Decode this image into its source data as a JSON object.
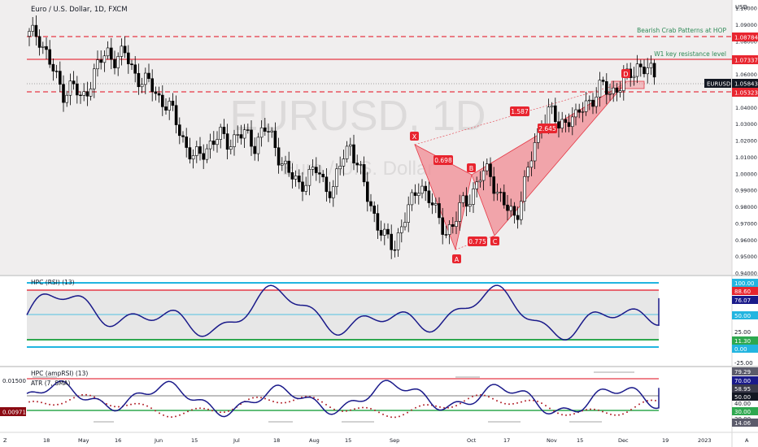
{
  "header": {
    "symbol_title": "Euro / U.S. Dollar, 1D, FXCM"
  },
  "watermark": {
    "main": "EURUSD, 1D",
    "sub": "Euro / U.S. Dollar"
  },
  "price_axis": {
    "currency": "USD",
    "ticks": [
      "1.10000",
      "1.09000",
      "1.08000",
      "1.07000",
      "1.06000",
      "1.05000",
      "1.04000",
      "1.03000",
      "1.02000",
      "1.01000",
      "1.00000",
      "0.99000",
      "0.98000",
      "0.97000",
      "0.96000",
      "0.95000",
      "0.94000"
    ]
  },
  "levels": {
    "hop_label": "Bearish Crab Patterns at HOP",
    "hop_value": "1.08784",
    "resistance_label": "W1 key resistance level",
    "resistance_value": "1.07337",
    "support_value": "1.05323",
    "last_symbol": "EURUSD",
    "last_value": "1.05843"
  },
  "pattern": {
    "points": {
      "X": "X",
      "A": "A",
      "B": "B",
      "C": "C",
      "D": "D"
    },
    "ratios": {
      "xab": "0.698",
      "abc": "0.775",
      "bcd": "2.645",
      "xad": "1.587"
    }
  },
  "time_axis": {
    "labels": [
      "Z",
      "18",
      "May",
      "16",
      "Jun",
      "15",
      "Jul",
      "18",
      "Aug",
      "15",
      "Sep",
      "Oct",
      "17",
      "Nov",
      "15",
      "Dec",
      "19",
      "2023",
      "A"
    ]
  },
  "rsi_panel": {
    "title": "HPC (RSI) (13)",
    "badges": {
      "top": "100.00",
      "upper": "88.60",
      "value": "76.07",
      "mid": "50.00",
      "low_label": "25.00",
      "lower": "11.30",
      "bottom": "0.00",
      "neg": "-25.00"
    }
  },
  "amp_panel": {
    "title": "HPC (ampRSI) (13)",
    "atr_title": "ATR (7, SMA)",
    "atr_axis": "0.01500",
    "atr_value": "0.00971",
    "badges": {
      "b1": "79.29",
      "b2": "70.00",
      "b3": "58.95",
      "b4": "50.00",
      "b5": "40.00",
      "b6": "30.00",
      "b7": "20.00",
      "b8": "14.06"
    }
  },
  "colors": {
    "bull": "#ffffff",
    "bear": "#000000",
    "red_line": "#f23645",
    "pattern_fill": "#f28b93",
    "indicator": "#1a1a8a",
    "cyan": "#22b5e0",
    "green": "#2ea84f"
  },
  "chart_data": {
    "type": "candlestick",
    "title": "Euro / U.S. Dollar, 1D, FXCM",
    "ylabel": "USD",
    "ylim": [
      0.94,
      1.1
    ],
    "x_labels": [
      "18",
      "May",
      "16",
      "Jun",
      "15",
      "Jul",
      "18",
      "Aug",
      "15",
      "Sep",
      "Oct",
      "17",
      "Nov",
      "15",
      "Dec",
      "19",
      "2023"
    ],
    "close_path": [
      [
        0,
        1.083
      ],
      [
        6,
        1.085
      ],
      [
        12,
        1.072
      ],
      [
        18,
        1.058
      ],
      [
        24,
        1.049
      ],
      [
        30,
        1.054
      ],
      [
        36,
        1.043
      ],
      [
        42,
        1.056
      ],
      [
        48,
        1.066
      ],
      [
        54,
        1.073
      ],
      [
        60,
        1.07
      ],
      [
        66,
        1.072
      ],
      [
        72,
        1.062
      ],
      [
        78,
        1.056
      ],
      [
        84,
        1.053
      ],
      [
        90,
        1.046
      ],
      [
        96,
        1.041
      ],
      [
        102,
        1.03
      ],
      [
        108,
        1.018
      ],
      [
        114,
        1.008
      ],
      [
        120,
        1.013
      ],
      [
        126,
        1.02
      ],
      [
        132,
        1.022
      ],
      [
        138,
        1.019
      ],
      [
        144,
        1.024
      ],
      [
        150,
        1.022
      ],
      [
        156,
        1.018
      ],
      [
        162,
        1.028
      ],
      [
        168,
        1.02
      ],
      [
        174,
        1.009
      ],
      [
        180,
        0.999
      ],
      [
        186,
        0.993
      ],
      [
        192,
        0.998
      ],
      [
        198,
        1.002
      ],
      [
        204,
        0.994
      ],
      [
        210,
        0.99
      ],
      [
        216,
        1.008
      ],
      [
        222,
        1.019
      ],
      [
        228,
        1.002
      ],
      [
        234,
        0.985
      ],
      [
        240,
        0.972
      ],
      [
        246,
        0.96
      ],
      [
        252,
        0.955
      ],
      [
        258,
        0.972
      ],
      [
        264,
        0.981
      ],
      [
        270,
        0.995
      ],
      [
        276,
        0.986
      ],
      [
        282,
        0.973
      ],
      [
        288,
        0.966
      ],
      [
        294,
        0.97
      ],
      [
        300,
        0.983
      ],
      [
        306,
        0.988
      ],
      [
        312,
        0.998
      ],
      [
        318,
        1.002
      ],
      [
        324,
        0.988
      ],
      [
        330,
        0.978
      ],
      [
        336,
        0.974
      ],
      [
        342,
        0.993
      ],
      [
        348,
        1.012
      ],
      [
        354,
        1.033
      ],
      [
        360,
        1.038
      ],
      [
        366,
        1.028
      ],
      [
        372,
        1.035
      ],
      [
        378,
        1.032
      ],
      [
        384,
        1.043
      ],
      [
        390,
        1.046
      ],
      [
        396,
        1.052
      ],
      [
        402,
        1.05
      ],
      [
        408,
        1.053
      ],
      [
        414,
        1.058
      ],
      [
        420,
        1.066
      ],
      [
        426,
        1.063
      ],
      [
        432,
        1.058
      ]
    ],
    "levels": {
      "hop": 1.08784,
      "resistance": 1.07337,
      "support": 1.05323,
      "last": 1.05843
    },
    "harmonic_points": {
      "X": 1.02,
      "A": 0.953,
      "B": 1.0,
      "C": 0.963,
      "D": 1.06
    },
    "rsi_levels": [
      100,
      88.6,
      50,
      11.3,
      0
    ],
    "rsi_last": 76.07,
    "amp_last": 70.0,
    "atr_last": 0.00971
  }
}
